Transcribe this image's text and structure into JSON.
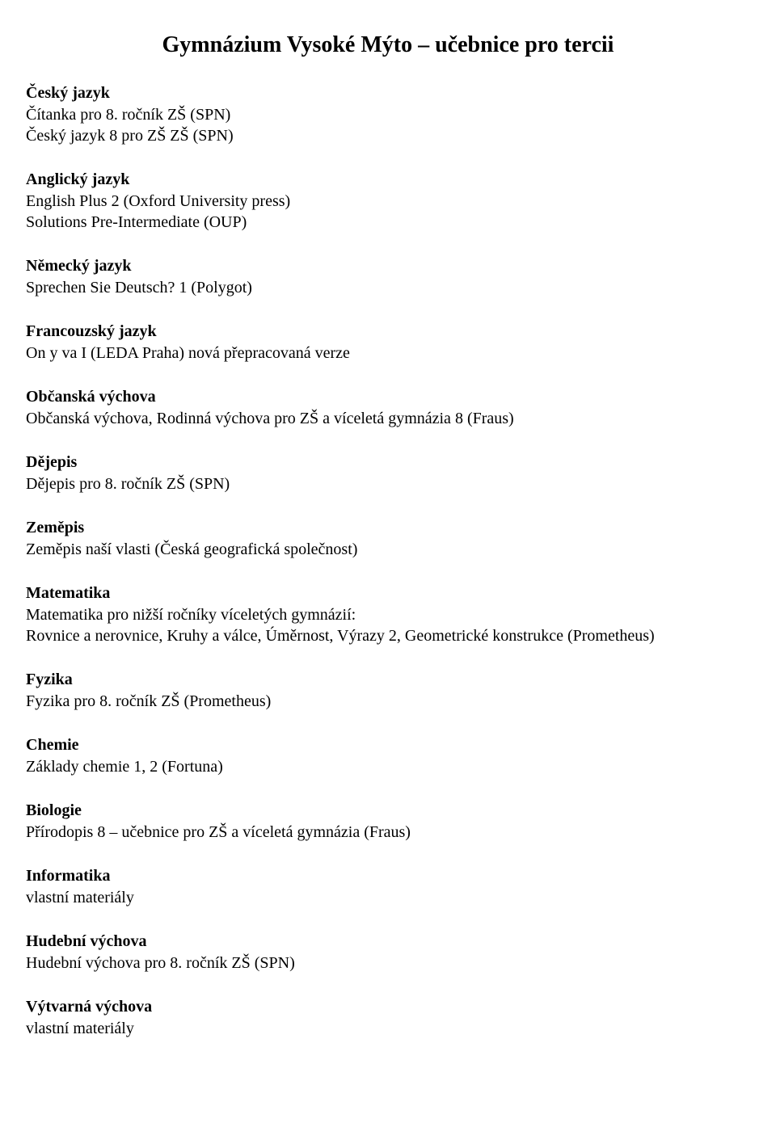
{
  "title": "Gymnázium Vysoké Mýto – učebnice pro tercii",
  "sections": [
    {
      "heading": "Český jazyk",
      "lines": [
        "Čítanka pro 8. ročník ZŠ (SPN)",
        "Český jazyk 8 pro ZŠ ZŠ (SPN)"
      ]
    },
    {
      "heading": "Anglický jazyk",
      "lines": [
        "English Plus 2 (Oxford University press)",
        "Solutions Pre-Intermediate (OUP)"
      ]
    },
    {
      "heading": "Německý jazyk",
      "lines": [
        "Sprechen Sie Deutsch? 1 (Polygot)"
      ]
    },
    {
      "heading": "Francouzský jazyk",
      "lines": [
        "On y va I (LEDA Praha) nová přepracovaná verze"
      ]
    },
    {
      "heading": "Občanská výchova",
      "lines": [
        "Občanská výchova, Rodinná výchova pro ZŠ a víceletá gymnázia 8 (Fraus)"
      ]
    },
    {
      "heading": "Dějepis",
      "lines": [
        "Dějepis pro 8. ročník ZŠ (SPN)"
      ]
    },
    {
      "heading": "Zeměpis",
      "lines": [
        "Zeměpis naší vlasti (Česká geografická společnost)"
      ]
    },
    {
      "heading": "Matematika",
      "lines": [
        "Matematika pro nižší ročníky víceletých gymnázií:",
        "Rovnice a nerovnice, Kruhy a válce, Úměrnost, Výrazy 2, Geometrické konstrukce (Prometheus)"
      ]
    },
    {
      "heading": "Fyzika",
      "lines": [
        "Fyzika pro 8. ročník ZŠ (Prometheus)"
      ]
    },
    {
      "heading": "Chemie",
      "lines": [
        "Základy chemie 1, 2 (Fortuna)"
      ]
    },
    {
      "heading": "Biologie",
      "lines": [
        "Přírodopis 8 – učebnice pro ZŠ a víceletá gymnázia (Fraus)"
      ]
    },
    {
      "heading": "Informatika",
      "lines": [
        "vlastní materiály"
      ]
    },
    {
      "heading": "Hudební výchova",
      "lines": [
        "Hudební výchova pro 8. ročník ZŠ (SPN)"
      ]
    },
    {
      "heading": "Výtvarná výchova",
      "lines": [
        "vlastní materiály"
      ]
    }
  ]
}
